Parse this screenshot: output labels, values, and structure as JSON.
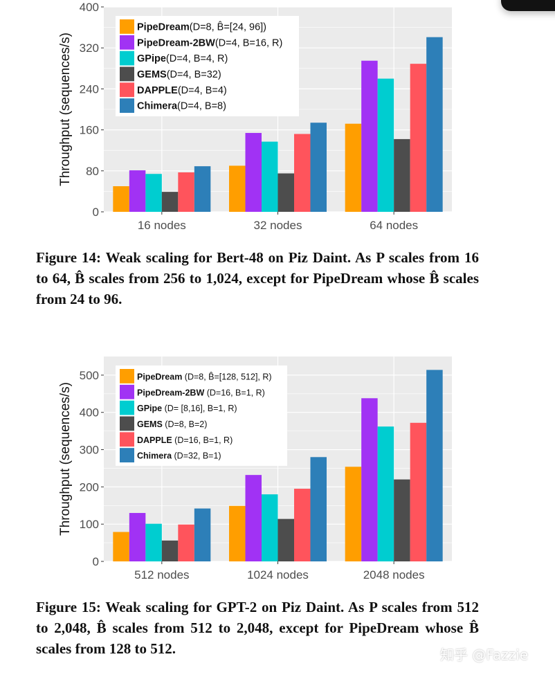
{
  "watermark": "知乎 @Fazzie",
  "colors": {
    "PipeDream": "#FF9E00",
    "PipeDream-2BW": "#A132F4",
    "GPipe": "#00CDD0",
    "GEMS": "#4D4D4D",
    "DAPPLE": "#FF545C",
    "Chimera": "#2D7FB8",
    "panel": "#EBEBEB",
    "grid": "#FFFFFF"
  },
  "figures": [
    {
      "caption": "Figure 14:  Weak scaling for Bert-48 on Piz Daint. As P scales from 16 to 64, B̂ scales from 256 to 1,024, except for PipeDream whose B̂ scales from 24 to 96."
    },
    {
      "caption": "Figure 15: Weak scaling for GPT-2 on Piz Daint. As P scales from 512 to 2,048, B̂ scales from 512 to 2,048, except for PipeDream whose B̂ scales from 128 to 512."
    }
  ],
  "chart_data": [
    {
      "type": "bar",
      "ylabel": "Throughput (sequences/s)",
      "xlabel": "",
      "ylim": [
        0,
        400
      ],
      "yticks": [
        0,
        80,
        160,
        240,
        320,
        400
      ],
      "categories": [
        "16 nodes",
        "32 nodes",
        "64 nodes"
      ],
      "legend_position": "top-left",
      "series": [
        {
          "name": "PipeDream",
          "legend_rest": "(D=8, B̂=[24, 96])",
          "values": [
            50,
            90,
            172
          ]
        },
        {
          "name": "PipeDream-2BW",
          "legend_rest": "(D=4, B=16, R)",
          "values": [
            81,
            154,
            295
          ]
        },
        {
          "name": "GPipe",
          "legend_rest": "(D=4, B=4, R)",
          "values": [
            74,
            137,
            260
          ]
        },
        {
          "name": "GEMS",
          "legend_rest": "(D=4, B=32)",
          "values": [
            39,
            75,
            142
          ]
        },
        {
          "name": "DAPPLE",
          "legend_rest": "(D=4, B=4)",
          "values": [
            77,
            152,
            289
          ]
        },
        {
          "name": "Chimera",
          "legend_rest": "(D=4, B=8)",
          "values": [
            89,
            174,
            341
          ]
        }
      ]
    },
    {
      "type": "bar",
      "ylabel": "Throughput (sequences/s)",
      "xlabel": "",
      "ylim": [
        0,
        550
      ],
      "yticks": [
        0,
        100,
        200,
        300,
        400,
        500
      ],
      "categories": [
        "512 nodes",
        "1024 nodes",
        "2048 nodes"
      ],
      "legend_position": "top-left",
      "series": [
        {
          "name": "PipeDream",
          "legend_rest": " (D=8, B̂=[128, 512], R)",
          "values": [
            79,
            149,
            254
          ]
        },
        {
          "name": "PipeDream-2BW",
          "legend_rest": " (D=16, B=1, R)",
          "values": [
            130,
            232,
            438
          ]
        },
        {
          "name": "GPipe",
          "legend_rest": " (D= [8,16], B=1, R)",
          "values": [
            101,
            180,
            362
          ]
        },
        {
          "name": "GEMS",
          "legend_rest": " (D=8, B=2)",
          "values": [
            56,
            114,
            220
          ]
        },
        {
          "name": "DAPPLE",
          "legend_rest": " (D=16, B=1, R)",
          "values": [
            99,
            195,
            372
          ]
        },
        {
          "name": "Chimera",
          "legend_rest": " (D=32, B=1)",
          "values": [
            142,
            280,
            514
          ]
        }
      ]
    }
  ]
}
